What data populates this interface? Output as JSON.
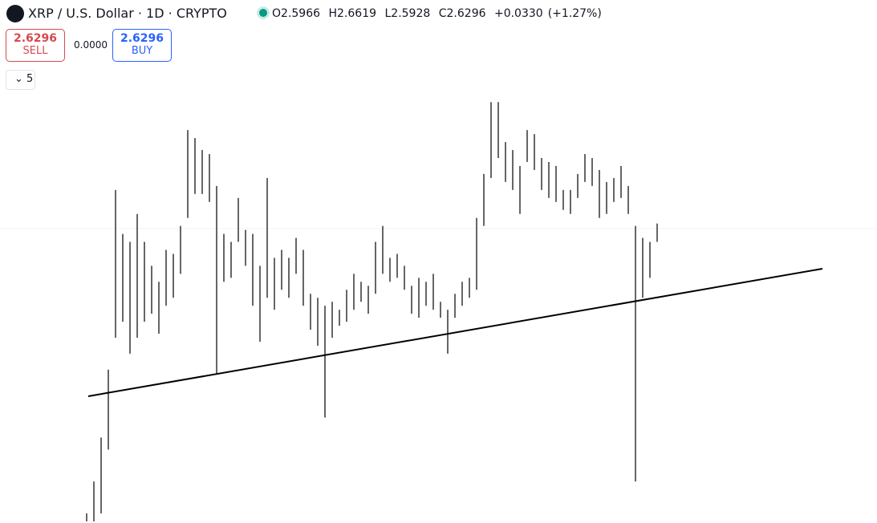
{
  "header": {
    "symbol": "XRP / U.S. Dollar · 1D · CRYPTO",
    "open_label": "O",
    "open": 2.5966,
    "high_label": "H",
    "high": 2.6619,
    "low_label": "L",
    "low": 2.5928,
    "close_label": "C",
    "close": 2.6296,
    "change": "+0.0330",
    "change_percent": "(+1.27%)"
  },
  "trade": {
    "sell_price": 2.6296,
    "sell_label": "SELL",
    "spread": "0.0000",
    "buy_price": 2.6296,
    "buy_label": "BUY"
  },
  "indicators_count": 5,
  "chart_data": {
    "type": "ohlc",
    "color": "#000000",
    "ylim": [
      1.543,
      3.14
    ],
    "high": [
      1.573,
      1.693,
      1.858,
      2.113,
      2.788,
      2.623,
      2.593,
      2.698,
      2.593,
      2.503,
      2.443,
      2.563,
      2.548,
      2.653,
      3.013,
      2.983,
      2.938,
      2.923,
      2.803,
      2.623,
      2.593,
      2.758,
      2.638,
      2.623,
      2.503,
      2.833,
      2.533,
      2.563,
      2.533,
      2.608,
      2.563,
      2.398,
      2.383,
      2.353,
      2.368,
      2.338,
      2.413,
      2.473,
      2.443,
      2.428,
      2.593,
      2.653,
      2.533,
      2.548,
      2.503,
      2.428,
      2.458,
      2.443,
      2.473,
      2.368,
      2.338,
      2.398,
      2.443,
      2.458,
      2.683,
      2.848,
      3.118,
      3.118,
      2.968,
      2.938,
      2.878,
      3.013,
      2.998,
      2.908,
      2.893,
      2.878,
      2.788,
      2.788,
      2.848,
      2.923,
      2.908,
      2.863,
      2.818,
      2.833,
      2.878,
      2.803,
      2.653,
      2.608,
      2.593,
      2.662
    ],
    "low": [
      1.543,
      1.543,
      1.573,
      1.813,
      2.233,
      2.293,
      2.173,
      2.233,
      2.293,
      2.323,
      2.248,
      2.353,
      2.383,
      2.473,
      2.683,
      2.773,
      2.773,
      2.743,
      2.098,
      2.443,
      2.458,
      2.593,
      2.503,
      2.353,
      2.218,
      2.383,
      2.338,
      2.413,
      2.383,
      2.473,
      2.353,
      2.263,
      2.203,
      1.933,
      2.233,
      2.278,
      2.293,
      2.338,
      2.368,
      2.323,
      2.398,
      2.473,
      2.443,
      2.458,
      2.413,
      2.323,
      2.308,
      2.353,
      2.338,
      2.308,
      2.173,
      2.308,
      2.353,
      2.383,
      2.413,
      2.653,
      2.833,
      2.908,
      2.818,
      2.788,
      2.698,
      2.893,
      2.863,
      2.788,
      2.758,
      2.743,
      2.713,
      2.698,
      2.758,
      2.818,
      2.803,
      2.683,
      2.698,
      2.743,
      2.758,
      2.698,
      1.693,
      2.383,
      2.458,
      2.593
    ]
  }
}
